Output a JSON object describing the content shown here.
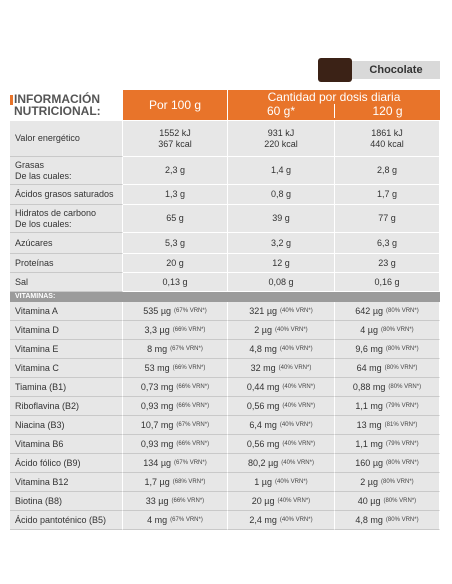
{
  "product": {
    "flavor": "Chocolate"
  },
  "header": {
    "title_lines": [
      "INFORMACIÓN",
      "NUTRICIONAL:"
    ],
    "per100": "Por 100 g",
    "dose_title": "Cantidad por dosis diaria",
    "dose1": "60 g*",
    "dose2": "120 g"
  },
  "nutrients": [
    {
      "label": [
        "Valor energético"
      ],
      "values": [
        [
          "1552 kJ",
          "367 kcal"
        ],
        [
          "931 kJ",
          "220 kcal"
        ],
        [
          "1861 kJ",
          "440 kcal"
        ]
      ]
    },
    {
      "label": [
        "Grasas",
        "De las cuales:"
      ],
      "values": [
        [
          "2,3 g"
        ],
        [
          "1,4 g"
        ],
        [
          "2,8 g"
        ]
      ]
    },
    {
      "label": [
        "Ácidos grasos saturados"
      ],
      "values": [
        [
          "1,3 g"
        ],
        [
          "0,8 g"
        ],
        [
          "1,7 g"
        ]
      ]
    },
    {
      "label": [
        "Hidratos de carbono",
        "De los cuales:"
      ],
      "values": [
        [
          "65 g"
        ],
        [
          "39 g"
        ],
        [
          "77 g"
        ]
      ]
    },
    {
      "label": [
        "Azúcares"
      ],
      "values": [
        [
          "5,3 g"
        ],
        [
          "3,2 g"
        ],
        [
          "6,3 g"
        ]
      ]
    },
    {
      "label": [
        "Proteínas"
      ],
      "values": [
        [
          "20 g"
        ],
        [
          "12 g"
        ],
        [
          "23 g"
        ]
      ]
    },
    {
      "label": [
        "Sal"
      ],
      "values": [
        [
          "0,13 g"
        ],
        [
          "0,08 g"
        ],
        [
          "0,16 g"
        ]
      ]
    }
  ],
  "vitamins": {
    "section": "VITAMINAS:",
    "rows": [
      {
        "label": "Vitamina A",
        "values": [
          {
            "amount": "535 µg",
            "vrn": "(67% VRN*)"
          },
          {
            "amount": "321 µg",
            "vrn": "(40% VRN*)"
          },
          {
            "amount": "642 µg",
            "vrn": "(80% VRN*)"
          }
        ]
      },
      {
        "label": "Vitamina D",
        "values": [
          {
            "amount": "3,3 µg",
            "vrn": "(66% VRN*)"
          },
          {
            "amount": "2 µg",
            "vrn": "(40% VRN*)"
          },
          {
            "amount": "4 µg",
            "vrn": "(80% VRN*)"
          }
        ]
      },
      {
        "label": "Vitamina E",
        "values": [
          {
            "amount": "8 mg",
            "vrn": "(67% VRN*)"
          },
          {
            "amount": "4,8 mg",
            "vrn": "(40% VRN*)"
          },
          {
            "amount": "9,6 mg",
            "vrn": "(80% VRN*)"
          }
        ]
      },
      {
        "label": "Vitamina C",
        "values": [
          {
            "amount": "53 mg",
            "vrn": "(66% VRN*)"
          },
          {
            "amount": "32 mg",
            "vrn": "(40% VRN*)"
          },
          {
            "amount": "64 mg",
            "vrn": "(80% VRN*)"
          }
        ]
      },
      {
        "label": "Tiamina (B1)",
        "values": [
          {
            "amount": "0,73 mg",
            "vrn": "(66% VRN*)"
          },
          {
            "amount": "0,44 mg",
            "vrn": "(40% VRN*)"
          },
          {
            "amount": "0,88 mg",
            "vrn": "(80% VRN*)"
          }
        ]
      },
      {
        "label": "Riboflavina (B2)",
        "values": [
          {
            "amount": "0,93 mg",
            "vrn": "(66% VRN*)"
          },
          {
            "amount": "0,56 mg",
            "vrn": "(40% VRN*)"
          },
          {
            "amount": "1,1 mg",
            "vrn": "(79% VRN*)"
          }
        ]
      },
      {
        "label": "Niacina (B3)",
        "values": [
          {
            "amount": "10,7 mg",
            "vrn": "(67% VRN*)"
          },
          {
            "amount": "6,4 mg",
            "vrn": "(40% VRN*)"
          },
          {
            "amount": "13 mg",
            "vrn": "(81% VRN*)"
          }
        ]
      },
      {
        "label": "Vitamina B6",
        "values": [
          {
            "amount": "0,93 mg",
            "vrn": "(66% VRN*)"
          },
          {
            "amount": "0,56 mg",
            "vrn": "(40% VRN*)"
          },
          {
            "amount": "1,1 mg",
            "vrn": "(79% VRN*)"
          }
        ]
      },
      {
        "label": "Ácido fólico (B9)",
        "values": [
          {
            "amount": "134 µg",
            "vrn": "(67% VRN*)"
          },
          {
            "amount": "80,2 µg",
            "vrn": "(40% VRN*)"
          },
          {
            "amount": "160 µg",
            "vrn": "(80% VRN*)"
          }
        ]
      },
      {
        "label": "Vitamina B12",
        "values": [
          {
            "amount": "1,7 µg",
            "vrn": "(68% VRN*)"
          },
          {
            "amount": "1 µg",
            "vrn": "(40% VRN*)"
          },
          {
            "amount": "2 µg",
            "vrn": "(80% VRN*)"
          }
        ]
      },
      {
        "label": "Biotina (B8)",
        "values": [
          {
            "amount": "33 µg",
            "vrn": "(66% VRN*)"
          },
          {
            "amount": "20 µg",
            "vrn": "(40% VRN*)"
          },
          {
            "amount": "40 µg",
            "vrn": "(80% VRN*)"
          }
        ]
      },
      {
        "label": "Ácido pantoténico (B5)",
        "values": [
          {
            "amount": "4 mg",
            "vrn": "(67% VRN*)"
          },
          {
            "amount": "2,4 mg",
            "vrn": "(40% VRN*)"
          },
          {
            "amount": "4,8 mg",
            "vrn": "(80% VRN*)"
          }
        ]
      }
    ]
  }
}
